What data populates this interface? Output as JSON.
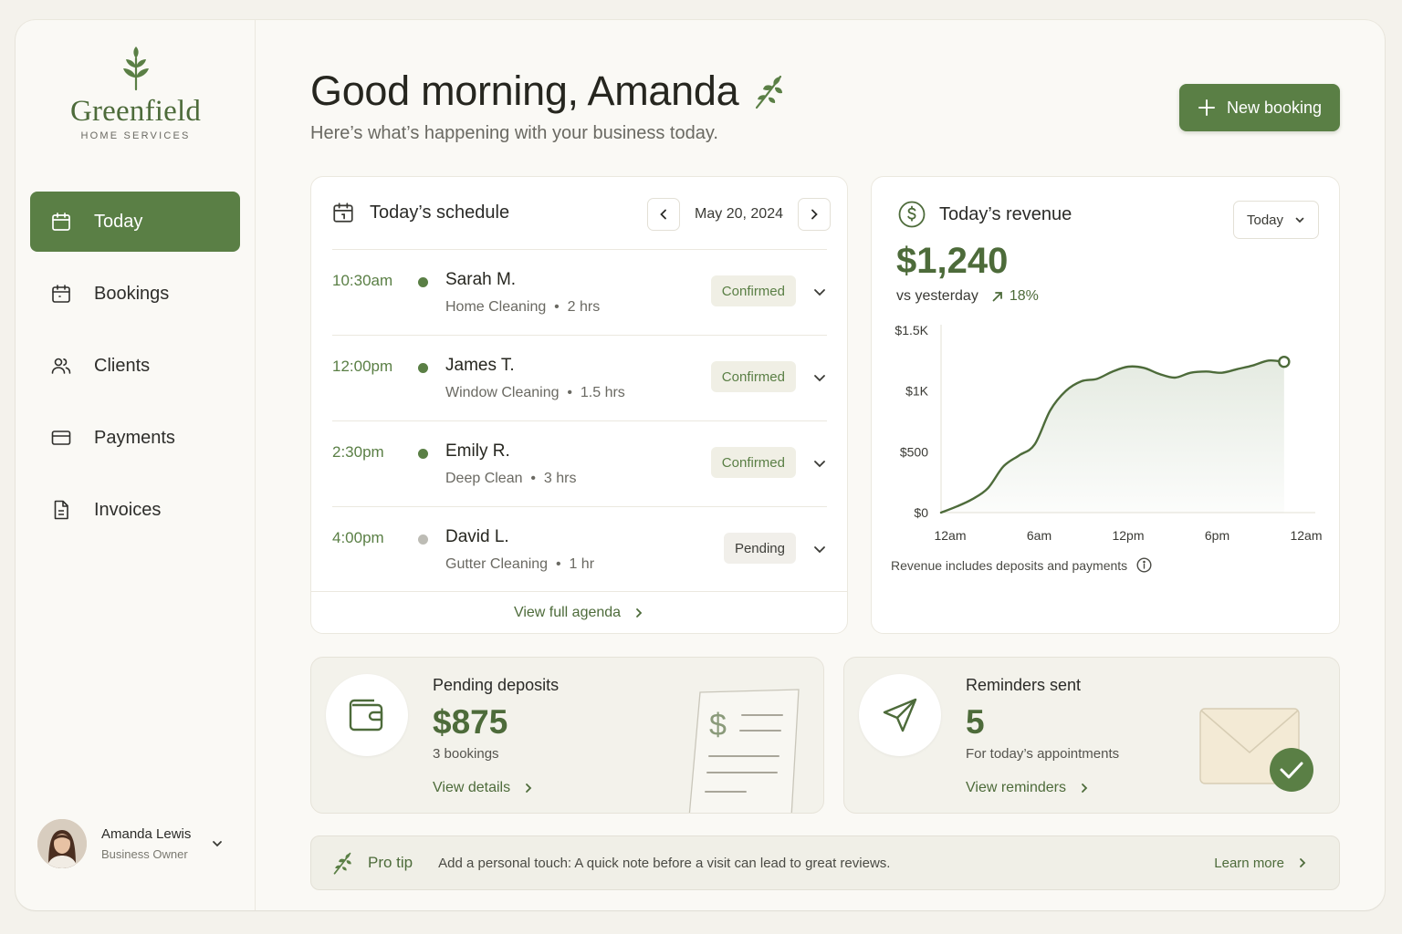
{
  "brand": {
    "name": "Greenfield",
    "tagline": "HOME SERVICES"
  },
  "sidebar": {
    "items": [
      {
        "label": "Today",
        "icon": "calendar-icon",
        "active": true
      },
      {
        "label": "Bookings",
        "icon": "calendar-icon"
      },
      {
        "label": "Clients",
        "icon": "users-icon"
      },
      {
        "label": "Payments",
        "icon": "credit-card-icon"
      },
      {
        "label": "Invoices",
        "icon": "document-icon"
      }
    ]
  },
  "user": {
    "name": "Amanda Lewis",
    "role": "Business Owner"
  },
  "header": {
    "greeting": "Good morning, Amanda",
    "subtitle": "Here’s what’s happening with your business today.",
    "new_booking_label": "New booking"
  },
  "schedule": {
    "title": "Today’s schedule",
    "date": "May 20, 2024",
    "rows": [
      {
        "time": "10:30am",
        "name": "Sarah M.",
        "detail": "Home Cleaning  •  2 hrs",
        "status": "Confirmed"
      },
      {
        "time": "12:00pm",
        "name": "James T.",
        "detail": "Window Cleaning  •  1.5 hrs",
        "status": "Confirmed"
      },
      {
        "time": "2:30pm",
        "name": "Emily R.",
        "detail": "Deep Clean  •  3 hrs",
        "status": "Confirmed"
      },
      {
        "time": "4:00pm",
        "name": "David L.",
        "detail": "Gutter Cleaning  •  1 hr",
        "status": "Pending"
      }
    ],
    "footer_link": "View full agenda"
  },
  "revenue": {
    "title": "Today’s revenue",
    "period": "Today",
    "amount": "$1,240",
    "vs_label": "vs yesterday",
    "change": "18%",
    "note": "Revenue includes deposits and payments"
  },
  "chart_data": {
    "type": "area",
    "x_ticks": [
      "12am",
      "6am",
      "12pm",
      "6pm",
      "12am"
    ],
    "y_ticks": [
      "$0",
      "$500",
      "$1K",
      "$1.5K"
    ],
    "ylim": [
      0,
      1500
    ],
    "xlim": [
      0,
      24
    ],
    "x": [
      0,
      1,
      2,
      3,
      4,
      5,
      6,
      7,
      8,
      9,
      10,
      11,
      12,
      13,
      14,
      15,
      16,
      17,
      18,
      19,
      20,
      21,
      22
    ],
    "values": [
      0,
      50,
      110,
      200,
      380,
      470,
      560,
      840,
      1000,
      1080,
      1100,
      1160,
      1200,
      1190,
      1140,
      1110,
      1150,
      1160,
      1150,
      1180,
      1210,
      1250,
      1240
    ]
  },
  "pending_deposits": {
    "title": "Pending deposits",
    "value": "$875",
    "sub": "3 bookings",
    "link": "View details"
  },
  "reminders": {
    "title": "Reminders sent",
    "value": "5",
    "sub": "For today’s appointments",
    "link": "View reminders"
  },
  "pro_tip": {
    "label": "Pro tip",
    "text": "Add a personal touch: A quick note before a visit can lead to great reviews.",
    "link": "Learn more"
  },
  "colors": {
    "accent": "#5a7f45",
    "accent_dark": "#4d6b3a",
    "background": "#f4f2ec"
  }
}
